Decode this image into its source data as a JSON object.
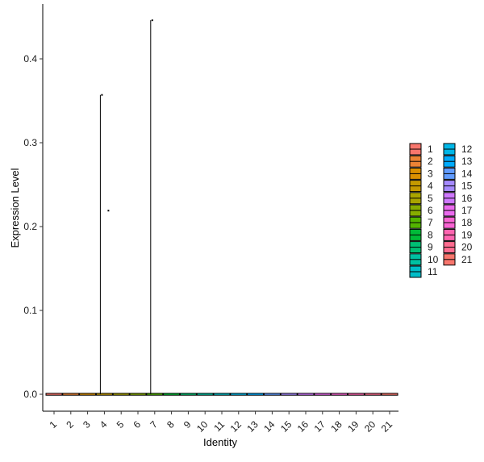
{
  "chart_data": {
    "type": "violin",
    "title": "",
    "xlabel": "Identity",
    "ylabel": "Expression Level",
    "ylim": [
      -0.02,
      0.46
    ],
    "yticks": [
      0.0,
      0.1,
      0.2,
      0.3,
      0.4
    ],
    "ytick_labels": [
      "0.0",
      "0.1",
      "0.2",
      "0.3",
      "0.4"
    ],
    "grid": false,
    "legend_placement": "right",
    "categories": [
      "1",
      "2",
      "3",
      "4",
      "5",
      "6",
      "7",
      "8",
      "9",
      "10",
      "11",
      "12",
      "13",
      "14",
      "15",
      "16",
      "17",
      "18",
      "19",
      "20",
      "21"
    ],
    "colors": [
      "#F8766D",
      "#EB8335",
      "#DA8F00",
      "#C49A00",
      "#A9A400",
      "#86AC00",
      "#53B400",
      "#00BA38",
      "#00BF74",
      "#00C0A2",
      "#00BDC8",
      "#00B7E8",
      "#00ABFD",
      "#619CFF",
      "#A58AFF",
      "#CF78FF",
      "#EB6AEE",
      "#FA64D4",
      "#FF64B0",
      "#FF6C90",
      "#F8766D"
    ],
    "series": [
      {
        "values": [
          0
        ]
      },
      {
        "values": [
          0
        ]
      },
      {
        "values": [
          0
        ]
      },
      {
        "values": [
          0,
          0.357,
          0.219
        ]
      },
      {
        "values": [
          0
        ]
      },
      {
        "values": [
          0
        ]
      },
      {
        "values": [
          0,
          0.446
        ]
      },
      {
        "values": [
          0
        ]
      },
      {
        "values": [
          0
        ]
      },
      {
        "values": [
          0
        ]
      },
      {
        "values": [
          0
        ]
      },
      {
        "values": [
          0
        ]
      },
      {
        "values": [
          0
        ]
      },
      {
        "values": [
          0
        ]
      },
      {
        "values": [
          0
        ]
      },
      {
        "values": [
          0
        ]
      },
      {
        "values": [
          0
        ]
      },
      {
        "values": [
          0
        ]
      },
      {
        "values": [
          0
        ]
      },
      {
        "values": [
          0
        ]
      },
      {
        "values": [
          0
        ]
      }
    ]
  }
}
